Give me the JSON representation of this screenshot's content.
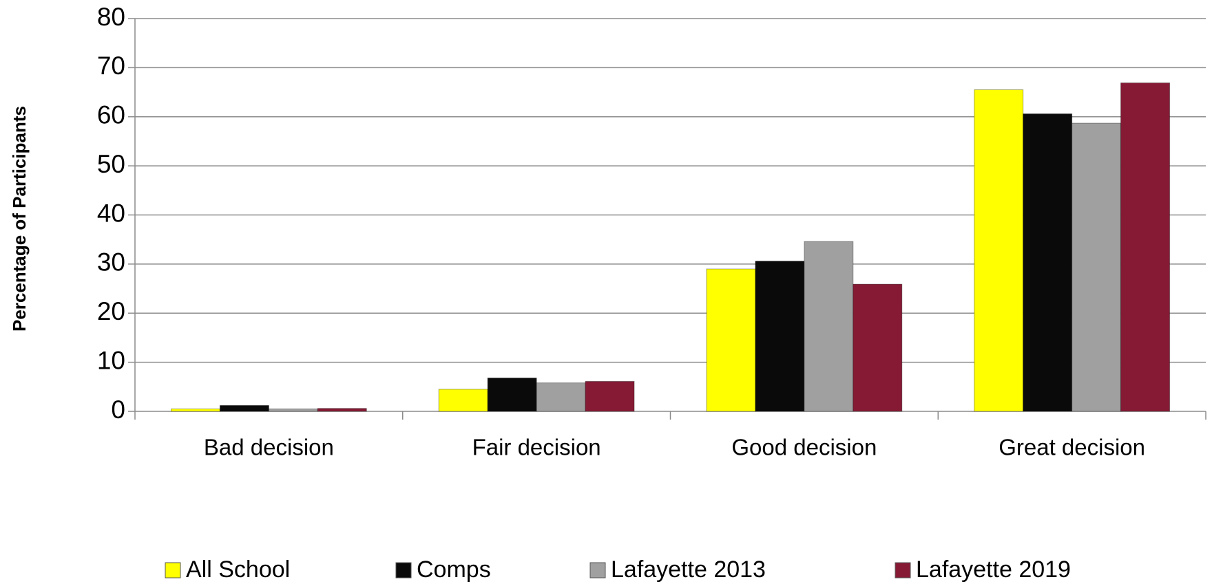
{
  "chart_data": {
    "type": "bar",
    "y_label": "Percentage of Participants",
    "categories": [
      "Bad decision",
      "Fair decision",
      "Good decision",
      "Great decision"
    ],
    "series": [
      {
        "name": "All School",
        "color": "#ffff00",
        "values": [
          0.5,
          4.5,
          29,
          65.5
        ]
      },
      {
        "name": "Comps",
        "color": "#0a0a0a",
        "values": [
          1.2,
          6.8,
          30.6,
          60.6
        ]
      },
      {
        "name": "Lafayette 2013",
        "color": "#a0a0a0",
        "values": [
          0.5,
          5.8,
          34.6,
          58.7
        ]
      },
      {
        "name": "Lafayette 2019",
        "color": "#861a35",
        "values": [
          0.6,
          6.1,
          25.9,
          66.9
        ]
      }
    ],
    "ylim": [
      0,
      80
    ],
    "yticks": [
      0,
      10,
      20,
      30,
      40,
      50,
      60,
      70,
      80
    ],
    "grid": true,
    "legend": "bottom"
  }
}
